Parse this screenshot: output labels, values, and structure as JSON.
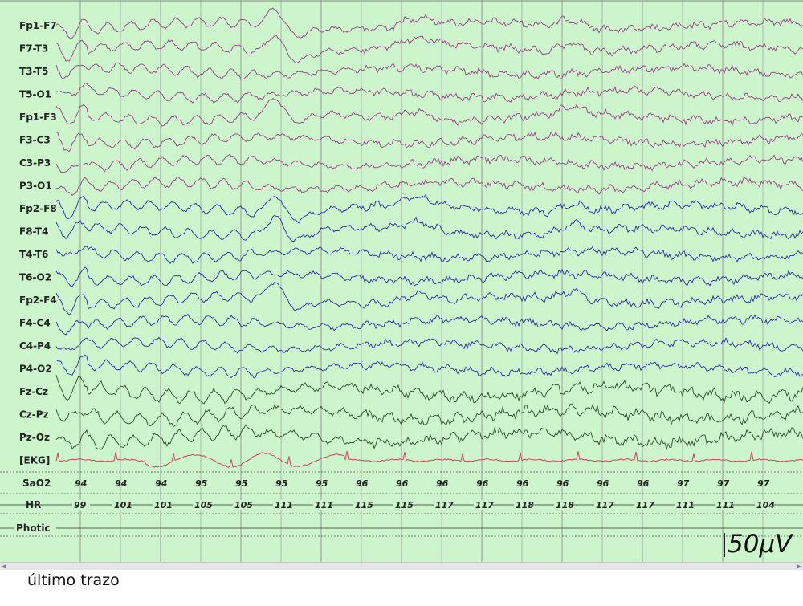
{
  "caption": "último trazo",
  "scale_label": "50µV",
  "colors": {
    "background": "#ccf5cc",
    "left_montage": "#9a3c8c",
    "right_montage": "#2a2aa8",
    "midline": "#2a4a2a",
    "ekg": "#d04060",
    "grid": "#8a8a8a"
  },
  "channels": [
    {
      "label": "Fp1-F7",
      "group": "left"
    },
    {
      "label": "F7-T3",
      "group": "left"
    },
    {
      "label": "T3-T5",
      "group": "left"
    },
    {
      "label": "T5-O1",
      "group": "left"
    },
    {
      "label": "Fp1-F3",
      "group": "left"
    },
    {
      "label": "F3-C3",
      "group": "left"
    },
    {
      "label": "C3-P3",
      "group": "left"
    },
    {
      "label": "P3-O1",
      "group": "left"
    },
    {
      "label": "Fp2-F8",
      "group": "right"
    },
    {
      "label": "F8-T4",
      "group": "right"
    },
    {
      "label": "T4-T6",
      "group": "right"
    },
    {
      "label": "T6-O2",
      "group": "right"
    },
    {
      "label": "Fp2-F4",
      "group": "right"
    },
    {
      "label": "F4-C4",
      "group": "right"
    },
    {
      "label": "C4-P4",
      "group": "right"
    },
    {
      "label": "P4-O2",
      "group": "right"
    },
    {
      "label": "Fz-Cz",
      "group": "midline"
    },
    {
      "label": "Cz-Pz",
      "group": "midline"
    },
    {
      "label": "Pz-Oz",
      "group": "midline"
    },
    {
      "label": "[EKG]",
      "group": "ekg"
    }
  ],
  "sao2": {
    "label": "SaO2",
    "values": [
      "94",
      "94",
      "94",
      "95",
      "95",
      "95",
      "95",
      "96",
      "96",
      "96",
      "96",
      "96",
      "96",
      "96",
      "96",
      "97",
      "97",
      "97"
    ]
  },
  "hr": {
    "label": "HR",
    "values": [
      "99",
      "101",
      "101",
      "105",
      "105",
      "111",
      "111",
      "115",
      "115",
      "117",
      "117",
      "118",
      "118",
      "117",
      "117",
      "111",
      "111",
      "104"
    ]
  },
  "photic": {
    "label": "Photic"
  },
  "icons": {
    "scroll_left": "arrow-left-icon",
    "scroll_right": "arrow-right-icon"
  }
}
